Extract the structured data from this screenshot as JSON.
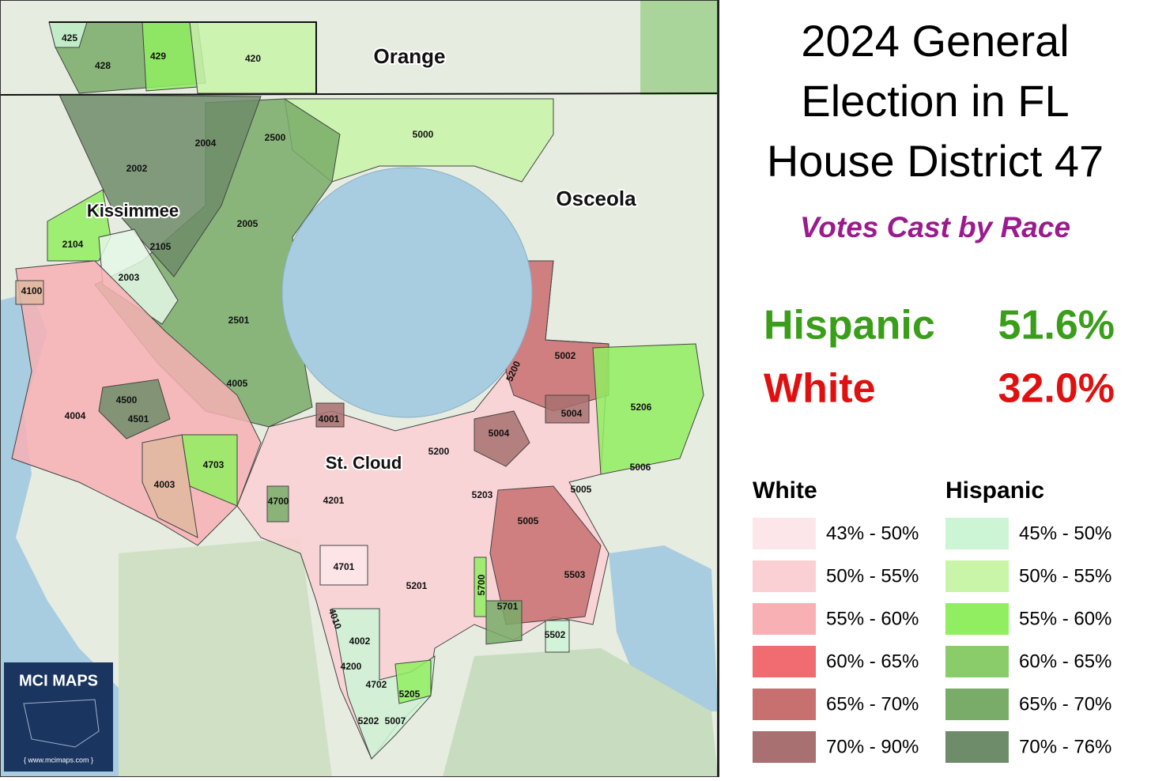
{
  "header": {
    "title_lines": [
      "2024 General",
      "Election in FL",
      "House District 47"
    ],
    "subtitle": "Votes Cast by Race"
  },
  "results": [
    {
      "group": "Hispanic",
      "share": "51.6%",
      "color": "#3a9e1a"
    },
    {
      "group": "White",
      "share": "32.0%",
      "color": "#e01010"
    }
  ],
  "legend": {
    "white": {
      "title": "White",
      "items": [
        {
          "label": "43% - 50%",
          "color": "#fde6ea"
        },
        {
          "label": "50% - 55%",
          "color": "#fbd0d4"
        },
        {
          "label": "55% - 60%",
          "color": "#f8b0b4"
        },
        {
          "label": "60% - 65%",
          "color": "#f06c70"
        },
        {
          "label": "65% - 70%",
          "color": "#c87070"
        },
        {
          "label": "70% - 90%",
          "color": "#a87070"
        }
      ]
    },
    "hispanic": {
      "title": "Hispanic",
      "items": [
        {
          "label": "45% - 50%",
          "color": "#ccf5d6"
        },
        {
          "label": "50% - 55%",
          "color": "#c8f5a8"
        },
        {
          "label": "55% - 60%",
          "color": "#90ee60"
        },
        {
          "label": "60% - 65%",
          "color": "#8acc6a"
        },
        {
          "label": "65% - 70%",
          "color": "#78ac68"
        },
        {
          "label": "70% - 76%",
          "color": "#6e8c6a"
        }
      ]
    }
  },
  "map": {
    "counties": [
      "Orange",
      "Osceola"
    ],
    "cities": [
      "Kissimmee",
      "St. Cloud"
    ],
    "precincts": [
      "425",
      "428",
      "429",
      "420",
      "5000",
      "2500",
      "2004",
      "2002",
      "2005",
      "2104",
      "2105",
      "2003",
      "4100",
      "2501",
      "4005",
      "4500",
      "4501",
      "4004",
      "4001",
      "4703",
      "4003",
      "4700",
      "4201",
      "5200",
      "5004",
      "5004",
      "5002",
      "5206",
      "5006",
      "5005",
      "5203",
      "5005",
      "5503",
      "4701",
      "5201",
      "5700",
      "5701",
      "5502",
      "4010",
      "4002",
      "4200",
      "4702",
      "5205",
      "5202",
      "5007",
      "5200"
    ]
  },
  "logo": {
    "name": "MCI MAPS",
    "url": "{ www.mcimaps.com }"
  }
}
